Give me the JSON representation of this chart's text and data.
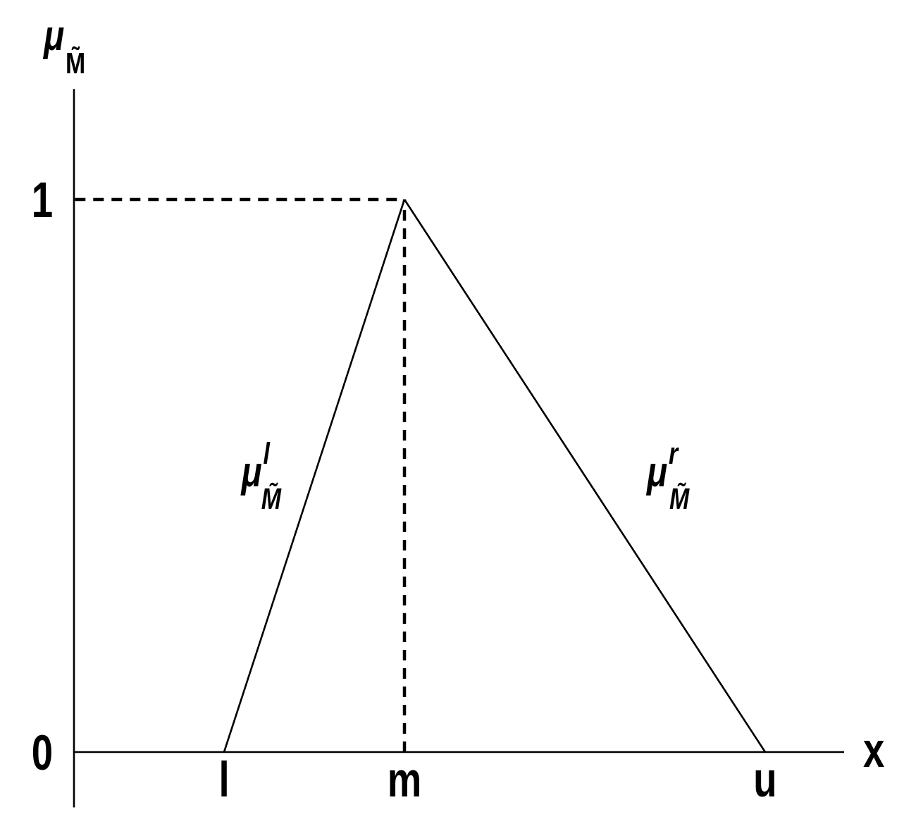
{
  "chart_data": {
    "type": "line",
    "xlabel": "x",
    "ylabel": "μ$_{M̃}$",
    "categories": [
      "l",
      "m",
      null,
      "u"
    ],
    "ylim": [
      -0.1,
      1.2
    ],
    "yticks": [
      0,
      1
    ],
    "series": [
      {
        "name": "μ$^{l}$$_{M̃}$",
        "color": "#000000",
        "values": [
          0,
          1,
          null,
          null
        ]
      },
      {
        "name": "μ$^{r}$$_{M̃}$",
        "color": "#000000",
        "values": [
          null,
          1,
          0.5,
          0
        ]
      }
    ],
    "ref_lines": [
      {
        "axis": "y",
        "value": 1,
        "color": "#000000",
        "line_style": "dashed"
      },
      {
        "axis": "x",
        "value": "m",
        "color": "#000000",
        "line_style": "dashed"
      }
    ]
  }
}
